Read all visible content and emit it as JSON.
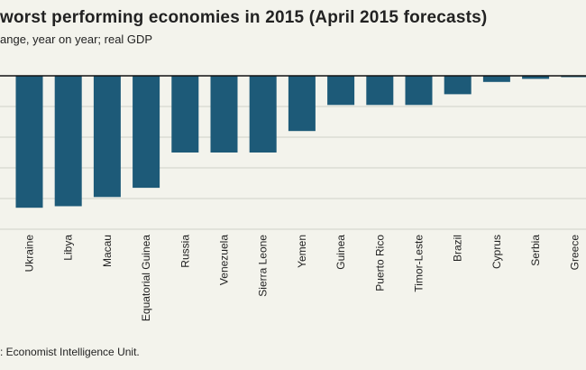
{
  "chart_data": {
    "type": "bar",
    "title": "worst performing economies in 2015 (April 2015 forecasts)",
    "subtitle": "ange, year on year; real GDP",
    "source": ": Economist Intelligence Unit.",
    "categories": [
      "Ukraine",
      "Libya",
      "Macau",
      "Equatorial Guinea",
      "Russia",
      "Venezuela",
      "Sierra Leone",
      "Yemen",
      "Guinea",
      "Puerto Rico",
      "Timor-Leste",
      "Brazil",
      "Cyprus",
      "Serbia",
      "Greece"
    ],
    "values": [
      -8.6,
      -8.5,
      -7.9,
      -7.3,
      -5.0,
      -5.0,
      -5.0,
      -3.6,
      -1.9,
      -1.9,
      -1.9,
      -1.2,
      -0.4,
      -0.2,
      -0.05
    ],
    "ylim": [
      -10,
      0
    ],
    "bar_color": "#1d5a78",
    "grid": true
  }
}
